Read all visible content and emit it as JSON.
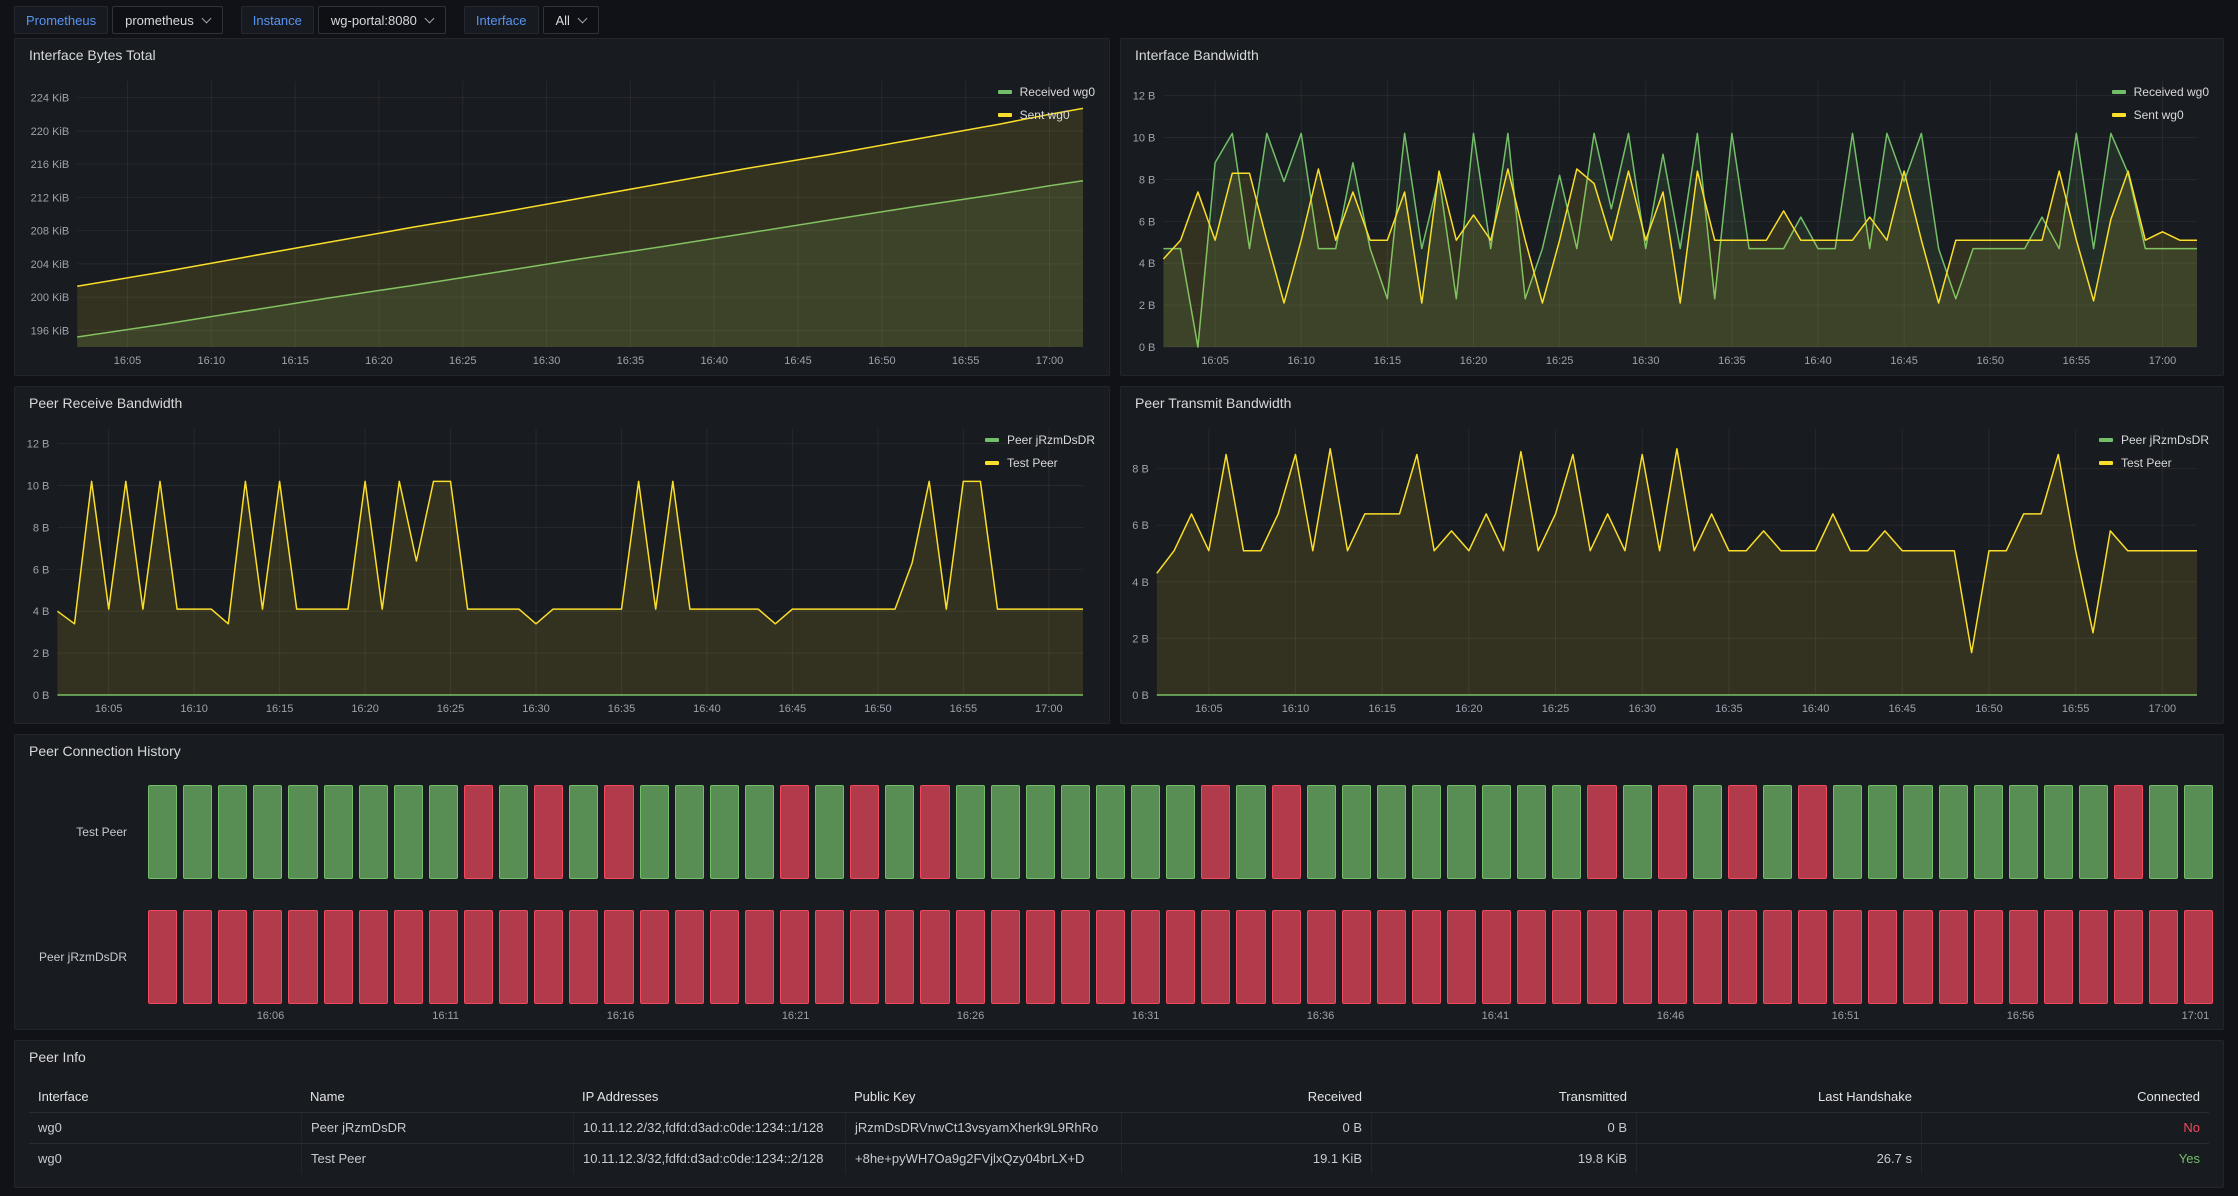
{
  "topbar": {
    "variables": [
      {
        "label": "Prometheus",
        "value": "prometheus"
      },
      {
        "label": "Instance",
        "value": "wg-portal:8080"
      },
      {
        "label": "Interface",
        "value": "All"
      }
    ]
  },
  "colors": {
    "green": "#73BF69",
    "yellow": "#FADE2A",
    "red": "#F2495C",
    "blue": "#5794F2",
    "status_up_fill": "#588E53",
    "status_down_fill": "#B13B4A",
    "panel_bg": "#181b1f",
    "page_bg": "#111217"
  },
  "panels": {
    "bytes_total": {
      "title": "Interface Bytes Total"
    },
    "bandwidth": {
      "title": "Interface Bandwidth"
    },
    "peer_rx": {
      "title": "Peer Receive Bandwidth"
    },
    "peer_tx": {
      "title": "Peer Transmit Bandwidth"
    },
    "history": {
      "title": "Peer Connection History"
    },
    "peer_info": {
      "title": "Peer Info"
    }
  },
  "chart_data": [
    {
      "id": "bytes_total",
      "type": "line",
      "title": "Interface Bytes Total",
      "ylim": [
        194,
        226
      ],
      "yticks": [
        196,
        200,
        204,
        208,
        212,
        216,
        220,
        224
      ],
      "ytick_suffix": " KiB",
      "xdomain": [
        0,
        60
      ],
      "x": [
        0,
        5,
        10,
        15,
        20,
        25,
        30,
        35,
        40,
        45,
        50,
        55,
        58,
        60
      ],
      "xtick_minutes": [
        3,
        8,
        13,
        18,
        23,
        28,
        33,
        38,
        43,
        48,
        53,
        58
      ],
      "xtick_labels": [
        "16:05",
        "16:10",
        "16:15",
        "16:20",
        "16:25",
        "16:30",
        "16:35",
        "16:40",
        "16:45",
        "16:50",
        "16:55",
        "17:00"
      ],
      "legend_position": "right",
      "grid": true,
      "series": [
        {
          "name": "Received wg0",
          "color": "#73BF69",
          "values": [
            195.2,
            196.7,
            198.3,
            199.9,
            201.4,
            203.0,
            204.6,
            206.1,
            207.7,
            209.3,
            210.9,
            212.4,
            213.4,
            214.0
          ]
        },
        {
          "name": "Sent wg0",
          "color": "#FADE2A",
          "values": [
            201.3,
            203.0,
            204.8,
            206.6,
            208.4,
            210.1,
            211.9,
            213.7,
            215.5,
            217.2,
            219.0,
            220.8,
            222.0,
            222.7
          ]
        }
      ]
    },
    {
      "id": "bandwidth",
      "type": "line",
      "title": "Interface Bandwidth",
      "ylim": [
        0,
        12.7
      ],
      "yticks": [
        0,
        2,
        4,
        6,
        8,
        10,
        12
      ],
      "ytick_suffix": " B",
      "xdomain": [
        0,
        60
      ],
      "xtick_minutes": [
        3,
        8,
        13,
        18,
        23,
        28,
        33,
        38,
        43,
        48,
        53,
        58
      ],
      "xtick_labels": [
        "16:05",
        "16:10",
        "16:15",
        "16:20",
        "16:25",
        "16:30",
        "16:35",
        "16:40",
        "16:45",
        "16:50",
        "16:55",
        "17:00"
      ],
      "legend_position": "right",
      "grid": true,
      "series": [
        {
          "name": "Received wg0",
          "color": "#73BF69",
          "values": [
            4.7,
            4.7,
            0,
            8.8,
            10.2,
            4.7,
            10.2,
            7.9,
            10.2,
            4.7,
            4.7,
            8.8,
            4.7,
            2.3,
            10.2,
            4.7,
            8.1,
            2.3,
            10.2,
            4.7,
            10.2,
            2.3,
            4.7,
            8.2,
            4.7,
            10.2,
            6.6,
            10.2,
            4.7,
            9.2,
            4.7,
            10.2,
            2.3,
            10.2,
            4.7,
            4.7,
            4.7,
            6.2,
            4.7,
            4.7,
            10.2,
            4.7,
            10.2,
            7.9,
            10.2,
            4.7,
            2.3,
            4.7,
            4.7,
            4.7,
            4.7,
            6.2,
            4.7,
            10.2,
            4.7,
            10.2,
            8.3,
            4.7,
            4.7,
            4.7,
            4.7
          ]
        },
        {
          "name": "Sent wg0",
          "color": "#FADE2A",
          "values": [
            4.2,
            5.1,
            7.4,
            5.1,
            8.3,
            8.3,
            5.1,
            2.1,
            5.1,
            8.5,
            5.1,
            7.4,
            5.1,
            5.1,
            7.4,
            2.1,
            8.4,
            5.1,
            6.3,
            5.1,
            8.5,
            5.1,
            2.1,
            5.1,
            8.5,
            7.8,
            5.1,
            8.4,
            5.1,
            7.4,
            2.1,
            8.4,
            5.1,
            5.1,
            5.1,
            5.1,
            6.5,
            5.1,
            5.1,
            5.1,
            5.1,
            6.2,
            5.1,
            8.4,
            5.1,
            2.1,
            5.1,
            5.1,
            5.1,
            5.1,
            5.1,
            5.1,
            8.4,
            5.1,
            2.2,
            6.1,
            8.4,
            5.1,
            5.5,
            5.1,
            5.1
          ]
        }
      ]
    },
    {
      "id": "peer_rx",
      "type": "line",
      "title": "Peer Receive Bandwidth",
      "ylim": [
        0,
        12.7
      ],
      "yticks": [
        0,
        2,
        4,
        6,
        8,
        10,
        12
      ],
      "ytick_suffix": " B",
      "xdomain": [
        0,
        60
      ],
      "xtick_minutes": [
        3,
        8,
        13,
        18,
        23,
        28,
        33,
        38,
        43,
        48,
        53,
        58
      ],
      "xtick_labels": [
        "16:05",
        "16:10",
        "16:15",
        "16:20",
        "16:25",
        "16:30",
        "16:35",
        "16:40",
        "16:45",
        "16:50",
        "16:55",
        "17:00"
      ],
      "legend_position": "right",
      "grid": true,
      "series": [
        {
          "name": "Peer jRzmDsDR",
          "color": "#73BF69",
          "values": [
            0,
            0,
            0,
            0,
            0,
            0,
            0,
            0,
            0,
            0,
            0,
            0,
            0,
            0,
            0,
            0,
            0,
            0,
            0,
            0,
            0,
            0,
            0,
            0,
            0,
            0,
            0,
            0,
            0,
            0,
            0,
            0,
            0,
            0,
            0,
            0,
            0,
            0,
            0,
            0,
            0,
            0,
            0,
            0,
            0,
            0,
            0,
            0,
            0,
            0,
            0,
            0,
            0,
            0,
            0,
            0,
            0,
            0,
            0,
            0,
            0
          ]
        },
        {
          "name": "Test Peer",
          "color": "#FADE2A",
          "values": [
            4.0,
            3.4,
            10.2,
            4.1,
            10.2,
            4.1,
            10.2,
            4.1,
            4.1,
            4.1,
            3.4,
            10.2,
            4.1,
            10.2,
            4.1,
            4.1,
            4.1,
            4.1,
            10.2,
            4.1,
            10.2,
            6.4,
            10.2,
            10.2,
            4.1,
            4.1,
            4.1,
            4.1,
            3.4,
            4.1,
            4.1,
            4.1,
            4.1,
            4.1,
            10.2,
            4.1,
            10.2,
            4.1,
            4.1,
            4.1,
            4.1,
            4.1,
            3.4,
            4.1,
            4.1,
            4.1,
            4.1,
            4.1,
            4.1,
            4.1,
            6.3,
            10.2,
            4.1,
            10.2,
            10.2,
            4.1,
            4.1,
            4.1,
            4.1,
            4.1,
            4.1
          ]
        }
      ]
    },
    {
      "id": "peer_tx",
      "type": "line",
      "title": "Peer Transmit Bandwidth",
      "ylim": [
        0,
        9.4
      ],
      "yticks": [
        0,
        2,
        4,
        6,
        8
      ],
      "ytick_suffix": " B",
      "xdomain": [
        0,
        60
      ],
      "xtick_minutes": [
        3,
        8,
        13,
        18,
        23,
        28,
        33,
        38,
        43,
        48,
        53,
        58
      ],
      "xtick_labels": [
        "16:05",
        "16:10",
        "16:15",
        "16:20",
        "16:25",
        "16:30",
        "16:35",
        "16:40",
        "16:45",
        "16:50",
        "16:55",
        "17:00"
      ],
      "legend_position": "right",
      "grid": true,
      "series": [
        {
          "name": "Peer jRzmDsDR",
          "color": "#73BF69",
          "values": [
            0,
            0,
            0,
            0,
            0,
            0,
            0,
            0,
            0,
            0,
            0,
            0,
            0,
            0,
            0,
            0,
            0,
            0,
            0,
            0,
            0,
            0,
            0,
            0,
            0,
            0,
            0,
            0,
            0,
            0,
            0,
            0,
            0,
            0,
            0,
            0,
            0,
            0,
            0,
            0,
            0,
            0,
            0,
            0,
            0,
            0,
            0,
            0,
            0,
            0,
            0,
            0,
            0,
            0,
            0,
            0,
            0,
            0,
            0,
            0,
            0
          ]
        },
        {
          "name": "Test Peer",
          "color": "#FADE2A",
          "values": [
            4.3,
            5.1,
            6.4,
            5.1,
            8.5,
            5.1,
            5.1,
            6.4,
            8.5,
            5.1,
            8.7,
            5.1,
            6.4,
            6.4,
            6.4,
            8.5,
            5.1,
            5.8,
            5.1,
            6.4,
            5.1,
            8.6,
            5.1,
            6.4,
            8.5,
            5.1,
            6.4,
            5.1,
            8.5,
            5.1,
            8.7,
            5.1,
            6.4,
            5.1,
            5.1,
            5.8,
            5.1,
            5.1,
            5.1,
            6.4,
            5.1,
            5.1,
            5.8,
            5.1,
            5.1,
            5.1,
            5.1,
            1.5,
            5.1,
            5.1,
            6.4,
            6.4,
            8.5,
            5.1,
            2.2,
            5.8,
            5.1,
            5.1,
            5.1,
            5.1,
            5.1
          ]
        }
      ]
    },
    {
      "id": "history",
      "type": "status-history",
      "title": "Peer Connection History",
      "up_color": "#73BF69",
      "down_color": "#F2495C",
      "rows": [
        {
          "label": "Test Peer",
          "pattern": "GGGGGGGGGRGRGRGGGGRGRGRGGGGGGGRGRGGGGGGGGRGRGRGRGGGGGGGGRGG"
        },
        {
          "label": "Peer jRzmDsDR",
          "pattern": "RRRRRRRRRRRRRRRRRRRRRRRRRRRRRRRRRRRRRRRRRRRRRRRRRRRRRRRRRRR"
        }
      ],
      "xtick_bar_index": [
        4,
        9,
        14,
        19,
        24,
        29,
        34,
        39,
        44,
        49,
        54,
        59
      ],
      "xtick_labels": [
        "16:06",
        "16:11",
        "16:16",
        "16:21",
        "16:26",
        "16:31",
        "16:36",
        "16:41",
        "16:46",
        "16:51",
        "16:56",
        "17:01"
      ]
    }
  ],
  "peer_info": {
    "title": "Peer Info",
    "headers": [
      "Interface",
      "Name",
      "IP Addresses",
      "Public Key",
      "Received",
      "Transmitted",
      "Last Handshake",
      "Connected"
    ],
    "rows": [
      {
        "interface": "wg0",
        "name": "Peer jRzmDsDR",
        "ip_addresses": "10.11.12.2/32,fdfd:d3ad:c0de:1234::1/128",
        "public_key": "jRzmDsDRVnwCt13vsyamXherk9L9RhRo",
        "received": "0 B",
        "transmitted": "0 B",
        "last_handshake": "",
        "connected": "No"
      },
      {
        "interface": "wg0",
        "name": "Test Peer",
        "ip_addresses": "10.11.12.3/32,fdfd:d3ad:c0de:1234::2/128",
        "public_key": "+8he+pyWH7Oa9g2FVjlxQzy04brLX+D",
        "received": "19.1 KiB",
        "transmitted": "19.8 KiB",
        "last_handshake": "26.7 s",
        "connected": "Yes"
      }
    ]
  }
}
